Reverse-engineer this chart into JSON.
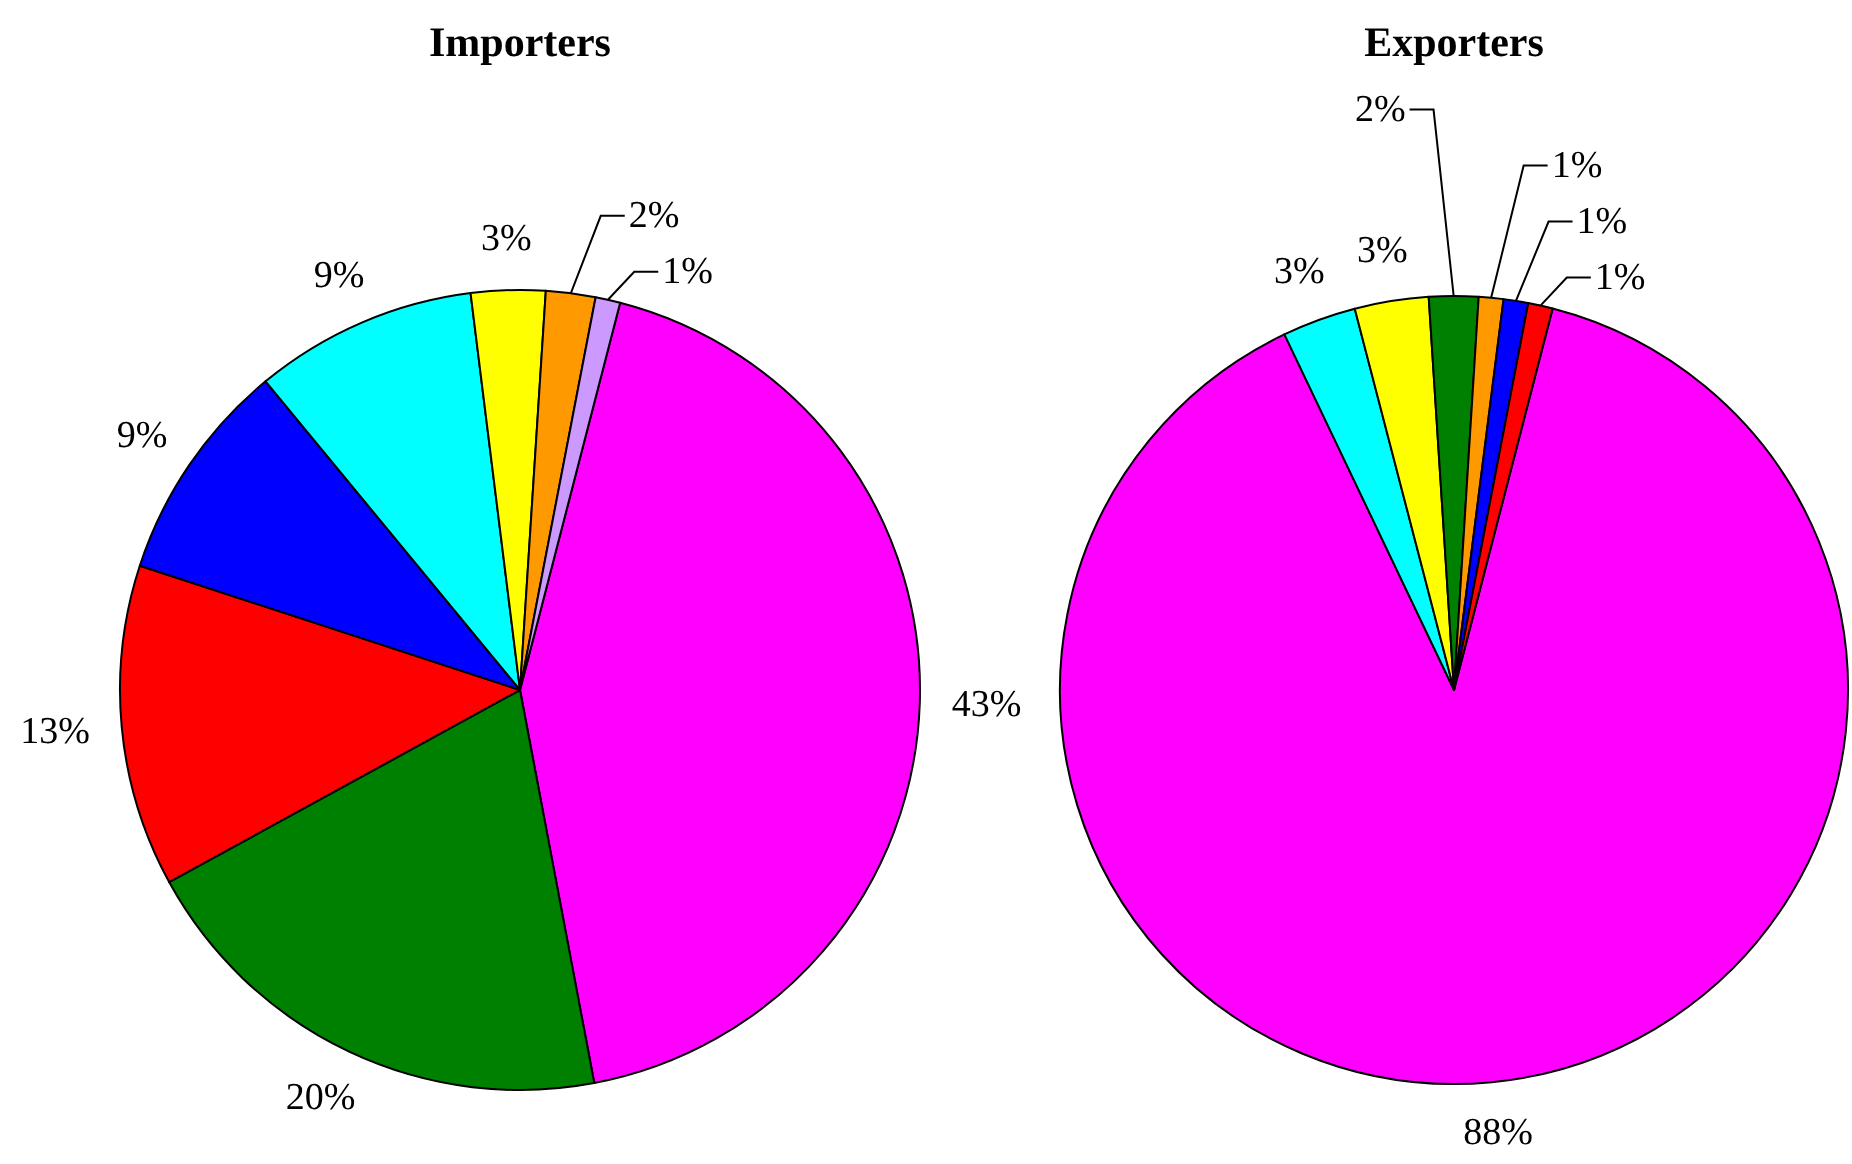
{
  "chart_data": [
    {
      "type": "pie",
      "title": "Importers",
      "categories": [
        null,
        null,
        null,
        null,
        null,
        null,
        null,
        null
      ],
      "values": [
        43,
        20,
        13,
        9,
        9,
        3,
        2,
        1
      ],
      "colors": [
        "#ff00ff",
        "#008000",
        "#ff0000",
        "#0000ff",
        "#00ffff",
        "#ffff00",
        "#ff9900",
        "#cc99ff"
      ],
      "value_labels": [
        "43%",
        "20%",
        "13%",
        "9%",
        "9%",
        "3%",
        "2%",
        "1%"
      ]
    },
    {
      "type": "pie",
      "title": "Exporters",
      "categories": [
        null,
        null,
        null,
        null,
        null,
        null,
        null
      ],
      "values": [
        88,
        3,
        3,
        2,
        1,
        1,
        1
      ],
      "colors": [
        "#ff00ff",
        "#00ffff",
        "#ffff00",
        "#008000",
        "#ff9900",
        "#0000ff",
        "#ff0000"
      ],
      "value_labels": [
        "88%",
        "3%",
        "3%",
        "2%",
        "1%",
        "1%",
        "1%"
      ]
    }
  ]
}
